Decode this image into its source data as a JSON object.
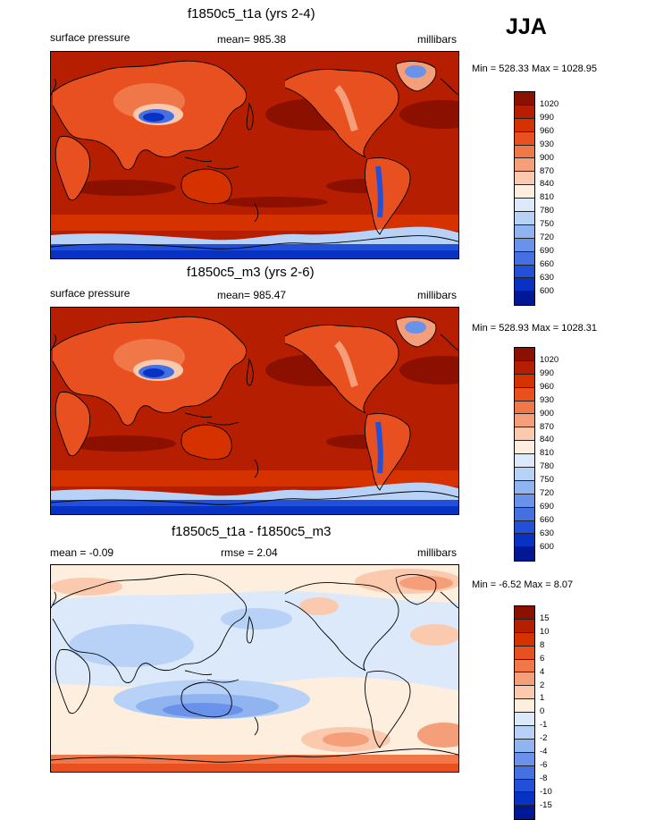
{
  "season": "JJA",
  "panels": [
    {
      "title": "f1850c5_t1a (yrs 2-4)",
      "left_label": "surface pressure",
      "center_label": "mean= 985.38",
      "right_label": "millibars",
      "minmax": "Min = 528.33 Max = 1028.95",
      "colorbar_labels": [
        "1020",
        "990",
        "960",
        "930",
        "900",
        "870",
        "840",
        "810",
        "780",
        "750",
        "720",
        "690",
        "660",
        "630",
        "600"
      ],
      "colorbar_colors": [
        "#8b1000",
        "#b51e00",
        "#d63200",
        "#e85020",
        "#f07848",
        "#f59e7a",
        "#fac9ae",
        "#fdeede",
        "#dbe9fb",
        "#b7d2f6",
        "#8fb4f0",
        "#6a92ea",
        "#4470e2",
        "#2350d8",
        "#0732c4",
        "#001896"
      ]
    },
    {
      "title": "f1850c5_m3 (yrs 2-6)",
      "left_label": "surface pressure",
      "center_label": "mean= 985.47",
      "right_label": "millibars",
      "minmax": "Min = 528.93 Max = 1028.31",
      "colorbar_labels": [
        "1020",
        "990",
        "960",
        "930",
        "900",
        "870",
        "840",
        "810",
        "780",
        "750",
        "720",
        "690",
        "660",
        "630",
        "600"
      ],
      "colorbar_colors": [
        "#8b1000",
        "#b51e00",
        "#d63200",
        "#e85020",
        "#f07848",
        "#f59e7a",
        "#fac9ae",
        "#fdeede",
        "#dbe9fb",
        "#b7d2f6",
        "#8fb4f0",
        "#6a92ea",
        "#4470e2",
        "#2350d8",
        "#0732c4",
        "#001896"
      ]
    },
    {
      "title": "f1850c5_t1a - f1850c5_m3",
      "left_label": "mean =  -0.09",
      "center_label": "rmse =   2.04",
      "right_label": "millibars",
      "minmax": "Min =  -6.52 Max =   8.07",
      "colorbar_labels": [
        "15",
        "10",
        "8",
        "6",
        "4",
        "2",
        "1",
        "0",
        "-1",
        "-2",
        "-4",
        "-6",
        "-8",
        "-10",
        "-15"
      ],
      "colorbar_colors": [
        "#8b1000",
        "#b51e00",
        "#d63200",
        "#e85020",
        "#f07848",
        "#f59e7a",
        "#fac9ae",
        "#fdeede",
        "#dbe9fb",
        "#b7d2f6",
        "#8fb4f0",
        "#6a92ea",
        "#4470e2",
        "#2350d8",
        "#0732c4",
        "#001896"
      ]
    }
  ]
}
